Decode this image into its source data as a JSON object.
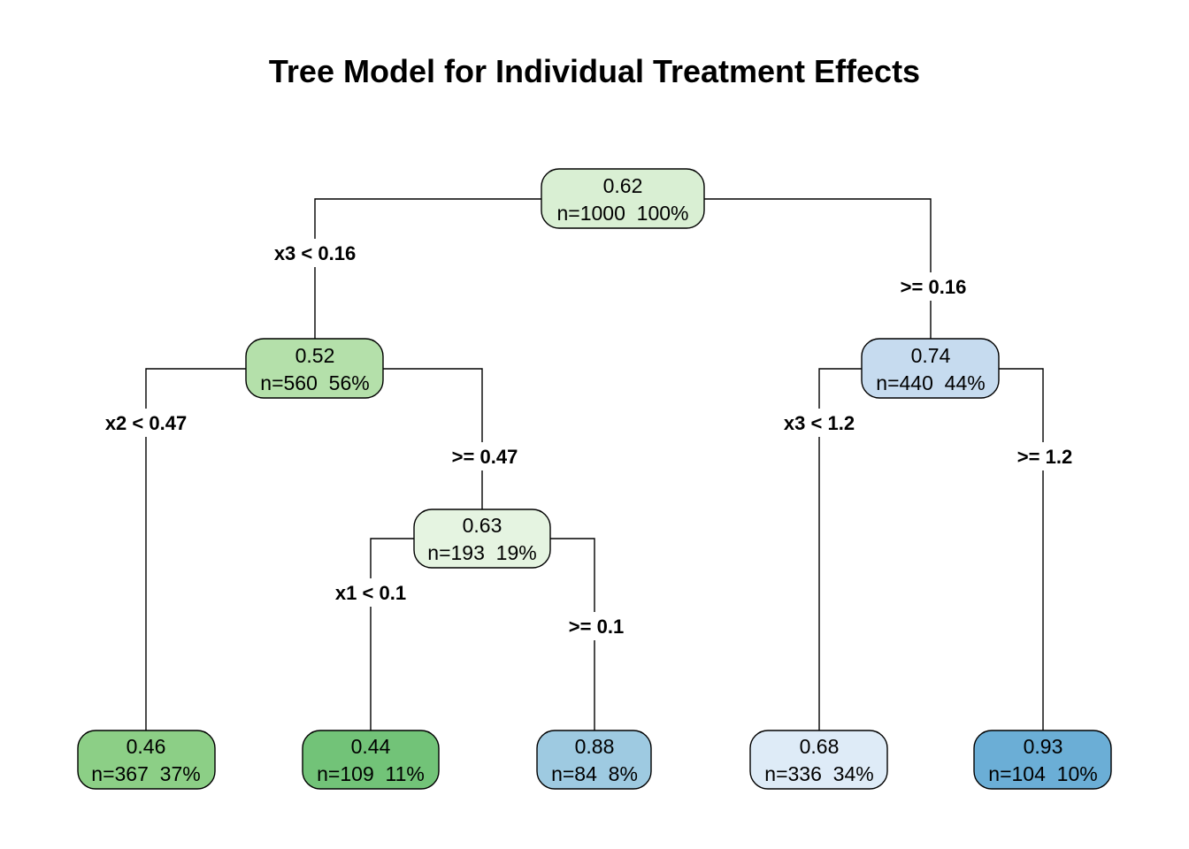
{
  "title": "Tree Model for Individual Treatment Effects",
  "nodes": {
    "root": {
      "value": "0.62",
      "info": "n=1000  100%",
      "color": "#d9efd3"
    },
    "n2": {
      "value": "0.52",
      "info": "n=560  56%",
      "color": "#b4e0aa"
    },
    "n3": {
      "value": "0.74",
      "info": "n=440  44%",
      "color": "#c6dbef"
    },
    "n5": {
      "value": "0.63",
      "info": "n=193  19%",
      "color": "#e5f4e1"
    },
    "leaf4": {
      "value": "0.46",
      "info": "n=367  37%",
      "color": "#8ccf86"
    },
    "leaf10": {
      "value": "0.44",
      "info": "n=109  11%",
      "color": "#72c378"
    },
    "leaf11": {
      "value": "0.88",
      "info": "n=84  8%",
      "color": "#9ecae1"
    },
    "leaf6": {
      "value": "0.68",
      "info": "n=336  34%",
      "color": "#deebf7"
    },
    "leaf7": {
      "value": "0.93",
      "info": "n=104  10%",
      "color": "#6baed6"
    }
  },
  "splits": {
    "root_left": "x3 < 0.16",
    "root_right": ">= 0.16",
    "n2_left": "x2 < 0.47",
    "n2_right": ">= 0.47",
    "n5_left": "x1 < 0.1",
    "n5_right": ">= 0.1",
    "n3_left": "x3 < 1.2",
    "n3_right": ">= 1.2"
  }
}
